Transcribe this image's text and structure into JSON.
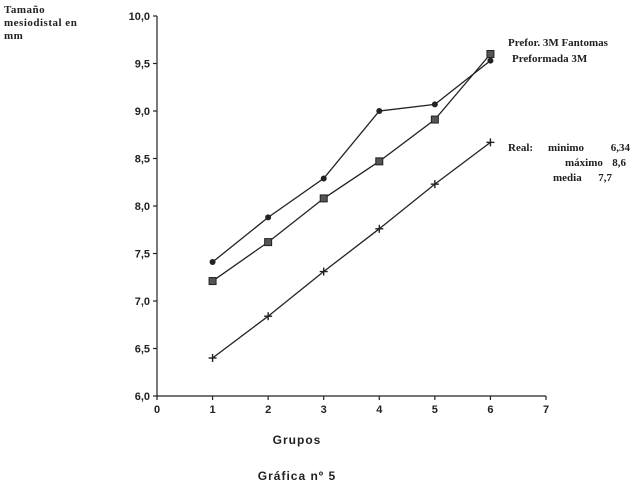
{
  "chart_data": {
    "type": "line",
    "ylabel_lines": [
      "Tamaño",
      "mesiodistal    en",
      "mm"
    ],
    "xlabel": "Grupos",
    "caption": "Gráfica  nº  5",
    "xlim": [
      0,
      7
    ],
    "ylim": [
      6.0,
      10.0
    ],
    "x_ticks": [
      "0",
      "1",
      "2",
      "3",
      "4",
      "5",
      "6",
      "7"
    ],
    "y_ticks": [
      "6,0",
      "6,5",
      "7,0",
      "7,5",
      "8,0",
      "8,5",
      "9,0",
      "9,5",
      "10,0"
    ],
    "x": [
      1,
      2,
      3,
      4,
      5,
      6
    ],
    "series": [
      {
        "name": "Prefor.  3M  Fantomas",
        "marker": "circle",
        "values": [
          7.41,
          7.88,
          8.29,
          9.0,
          9.07,
          9.53
        ]
      },
      {
        "name": "Preformada  3M",
        "marker": "square",
        "values": [
          7.21,
          7.62,
          8.08,
          8.47,
          8.91,
          9.6
        ]
      },
      {
        "name": "Real:",
        "marker": "plus",
        "values": [
          6.4,
          6.84,
          7.31,
          7.76,
          8.23,
          8.67
        ]
      }
    ],
    "notes": [
      {
        "label": "minimo",
        "value": "6,34"
      },
      {
        "label": "máximo",
        "value": "8,6"
      },
      {
        "label": "media",
        "value": "7,7"
      }
    ],
    "grid": false,
    "legend_position": "right"
  }
}
